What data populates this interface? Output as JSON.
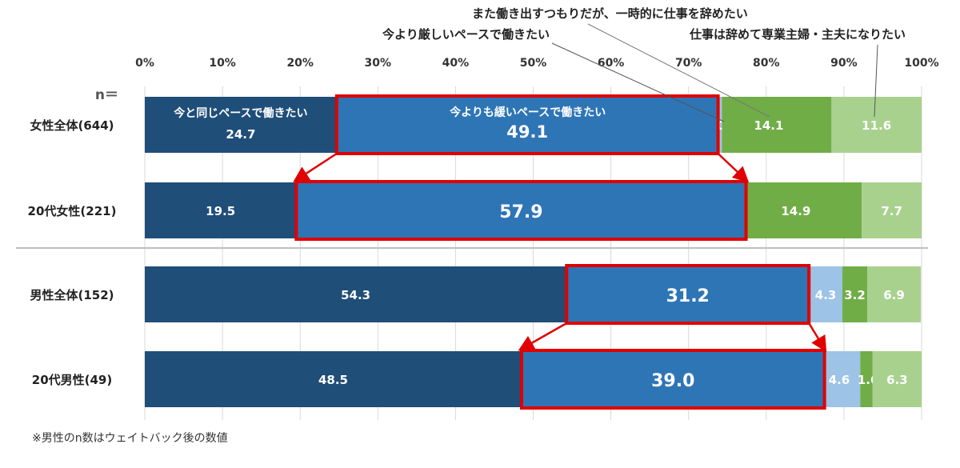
{
  "chart_data": {
    "type": "bar",
    "orientation": "horizontal",
    "stacked": "percent",
    "n_label": "n＝",
    "categories": [
      "女性全体(644)",
      "20代女性(221)",
      "男性全体(152)",
      "20代男性(49)"
    ],
    "xlim": [
      0,
      100
    ],
    "x_ticks": [
      "0%",
      "10%",
      "20%",
      "30%",
      "40%",
      "50%",
      "60%",
      "70%",
      "80%",
      "90%",
      "100%"
    ],
    "grid": true,
    "series": [
      {
        "name": "今と同じペースで働きたい",
        "color": "#1f4e79",
        "values": [
          24.7,
          19.5,
          54.3,
          48.5
        ]
      },
      {
        "name": "今よりも緩いペースで働きたい",
        "color": "#2e75b6",
        "values": [
          49.1,
          57.9,
          31.2,
          39.0
        ]
      },
      {
        "name": "今より厳しいペースで働きたい",
        "color": "#9dc3e6",
        "values": [
          0.5,
          0.0,
          4.3,
          4.6
        ]
      },
      {
        "name": "また働き出すつもりだが、一時的に仕事を辞めたい",
        "color": "#70ad47",
        "values": [
          14.1,
          14.9,
          3.2,
          1.6
        ]
      },
      {
        "name": "仕事は辞めて専業主婦・主夫になりたい",
        "color": "#a9d18e",
        "values": [
          11.6,
          7.7,
          6.9,
          6.3
        ]
      }
    ],
    "highlight_color": "#e00000",
    "footnote": "※男性のn数はウェイトバック後の数値"
  }
}
